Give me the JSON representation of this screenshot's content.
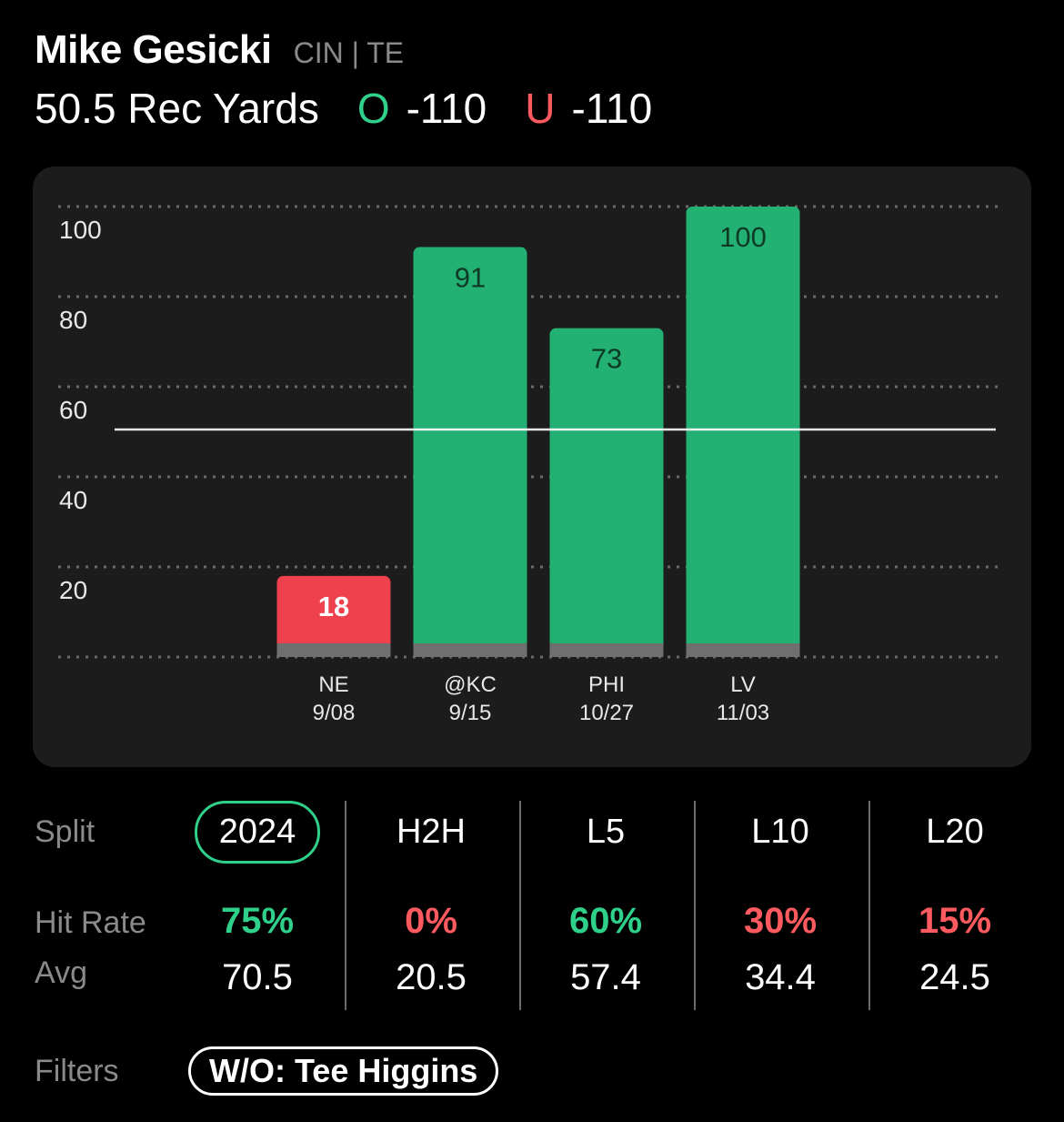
{
  "player": {
    "name": "Mike Gesicki",
    "meta": "CIN | TE"
  },
  "prop": {
    "label": "50.5 Rec Yards",
    "over_letter": "O",
    "over_odds": "-110",
    "under_letter": "U",
    "under_odds": "-110"
  },
  "colors": {
    "over": "#2fd08a",
    "under": "#ff5a5f",
    "bar_hit": "#22b173",
    "bar_miss": "#ef414d"
  },
  "chart_data": {
    "type": "bar",
    "categories": [
      "NE",
      "@KC",
      "PHI",
      "LV"
    ],
    "dates": [
      "9/08",
      "9/15",
      "10/27",
      "11/03"
    ],
    "values": [
      18,
      91,
      73,
      100
    ],
    "data_labels": [
      "18",
      "91",
      "73",
      "100"
    ],
    "hit": [
      false,
      true,
      true,
      true
    ],
    "yticks": [
      "20",
      "40",
      "60",
      "80",
      "100"
    ],
    "ylim": [
      0,
      100
    ],
    "line_value": 50.5,
    "grid": true
  },
  "stats": {
    "split_label": "Split",
    "hit_label": "Hit Rate",
    "avg_label": "Avg",
    "columns": [
      {
        "head": "2024",
        "hit": "75%",
        "hit_color": "#2fd08a",
        "avg": "70.5"
      },
      {
        "head": "H2H",
        "hit": "0%",
        "hit_color": "#ff5a5f",
        "avg": "20.5"
      },
      {
        "head": "L5",
        "hit": "60%",
        "hit_color": "#2fd08a",
        "avg": "57.4"
      },
      {
        "head": "L10",
        "hit": "30%",
        "hit_color": "#ff5a5f",
        "avg": "34.4"
      },
      {
        "head": "L20",
        "hit": "15%",
        "hit_color": "#ff5a5f",
        "avg": "24.5"
      }
    ]
  },
  "filters": {
    "label": "Filters",
    "active": "W/O: Tee Higgins"
  }
}
